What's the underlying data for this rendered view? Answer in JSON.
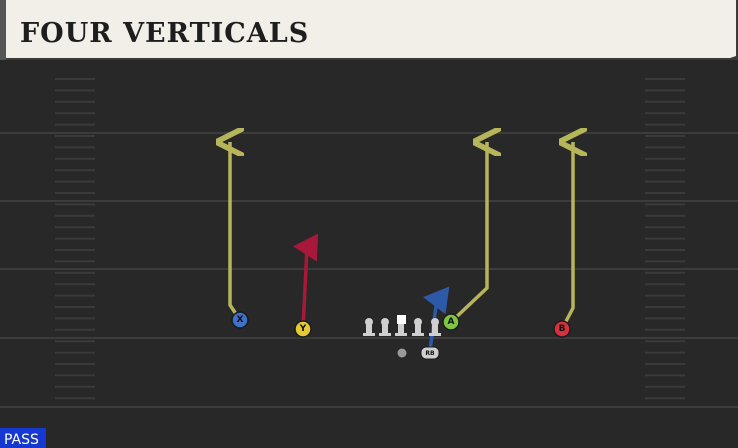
{
  "header": {
    "title": "FOUR VERTICALS"
  },
  "players": [
    {
      "label": "X"
    },
    {
      "label": "Y"
    },
    {
      "label": "A"
    },
    {
      "label": "B"
    },
    {
      "label": "RB"
    }
  ],
  "badge": "PASS"
}
